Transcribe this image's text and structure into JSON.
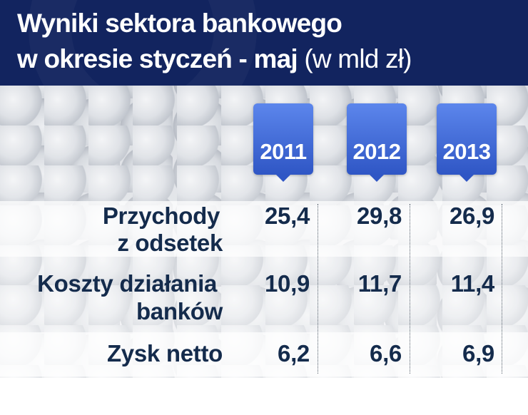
{
  "title": {
    "line1": "Wyniki sektora bankowego",
    "line2": "w okresie styczeń - maj",
    "unit": "(w mld zł)"
  },
  "chart_data": {
    "type": "table",
    "title": "Wyniki sektora bankowego w okresie styczeń - maj",
    "unit": "(w mld zł)",
    "columns": [
      "2011",
      "2012",
      "2013"
    ],
    "rows": [
      {
        "label_lines": [
          "Przychody",
          "z odsetek"
        ],
        "values": [
          "25,4",
          "29,8",
          "26,9"
        ]
      },
      {
        "label_lines": [
          "Koszty działania",
          "banków"
        ],
        "values": [
          "10,9",
          "11,7",
          "11,4"
        ]
      },
      {
        "label_lines": [
          "Zysk netto"
        ],
        "values": [
          "6,2",
          "6,6",
          "6,9"
        ]
      }
    ]
  }
}
